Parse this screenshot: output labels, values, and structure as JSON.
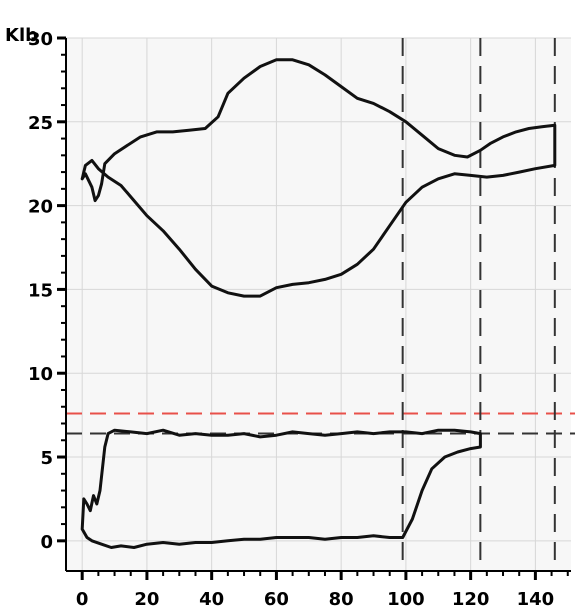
{
  "chart_data": {
    "type": "line",
    "title": "",
    "xlabel": "",
    "ylabel": "Klb",
    "xlim": [
      -5,
      151
    ],
    "ylim": [
      -1.8,
      30
    ],
    "x_ticks": [
      0,
      20,
      40,
      60,
      80,
      100,
      120,
      140
    ],
    "y_ticks": [
      0,
      5,
      10,
      15,
      20,
      25,
      30
    ],
    "grid": true,
    "legend": "none",
    "colors": {
      "plot_background": "#f7f7f7",
      "grid": "#d7d7d7",
      "curve": "#111111",
      "red_reference": "#e8504a",
      "dashed_reference": "#333333"
    },
    "reference_lines": {
      "horizontal": [
        {
          "y": 7.6,
          "color": "#e8504a",
          "style": "dashed"
        },
        {
          "y": 6.4,
          "color": "#333333",
          "style": "dashed"
        }
      ],
      "vertical": [
        {
          "x": 99,
          "color": "#333333",
          "style": "dashed"
        },
        {
          "x": 123,
          "color": "#333333",
          "style": "dashed"
        },
        {
          "x": 146,
          "color": "#333333",
          "style": "dashed"
        }
      ]
    },
    "series": [
      {
        "values": [
          [
            0,
            21.6
          ],
          [
            1,
            22.4
          ],
          [
            3,
            22.7
          ],
          [
            5,
            22.2
          ],
          [
            8,
            21.7
          ],
          [
            12,
            21.2
          ],
          [
            16,
            20.3
          ],
          [
            20,
            19.4
          ],
          [
            25,
            18.5
          ],
          [
            30,
            17.4
          ],
          [
            35,
            16.2
          ],
          [
            40,
            15.2
          ],
          [
            45,
            14.8
          ],
          [
            50,
            14.6
          ],
          [
            55,
            14.6
          ],
          [
            60,
            15.1
          ],
          [
            65,
            15.3
          ],
          [
            70,
            15.4
          ],
          [
            75,
            15.6
          ],
          [
            80,
            15.9
          ],
          [
            85,
            16.5
          ],
          [
            90,
            17.4
          ],
          [
            95,
            18.8
          ],
          [
            100,
            20.2
          ],
          [
            105,
            21.1
          ],
          [
            110,
            21.6
          ],
          [
            115,
            21.9
          ],
          [
            120,
            21.8
          ],
          [
            125,
            21.7
          ],
          [
            130,
            21.8
          ],
          [
            135,
            22.0
          ],
          [
            140,
            22.2
          ],
          [
            146,
            22.4
          ],
          [
            146,
            23.5
          ],
          [
            146,
            24.8
          ],
          [
            142,
            24.7
          ],
          [
            138,
            24.6
          ],
          [
            134,
            24.4
          ],
          [
            130,
            24.1
          ],
          [
            126,
            23.7
          ],
          [
            123,
            23.3
          ],
          [
            119,
            22.9
          ],
          [
            115,
            23.0
          ],
          [
            110,
            23.4
          ],
          [
            105,
            24.2
          ],
          [
            100,
            25.0
          ],
          [
            95,
            25.6
          ],
          [
            90,
            26.1
          ],
          [
            85,
            26.4
          ],
          [
            80,
            27.1
          ],
          [
            75,
            27.8
          ],
          [
            70,
            28.4
          ],
          [
            65,
            28.7
          ],
          [
            60,
            28.7
          ],
          [
            55,
            28.3
          ],
          [
            50,
            27.6
          ],
          [
            45,
            26.7
          ],
          [
            42,
            25.3
          ],
          [
            38,
            24.6
          ],
          [
            33,
            24.5
          ],
          [
            28,
            24.4
          ],
          [
            23,
            24.4
          ],
          [
            18,
            24.1
          ],
          [
            14,
            23.6
          ],
          [
            10,
            23.1
          ],
          [
            7,
            22.5
          ],
          [
            6,
            21.3
          ],
          [
            5,
            20.6
          ],
          [
            4,
            20.3
          ],
          [
            3,
            21.1
          ],
          [
            1,
            21.9
          ],
          [
            0,
            21.6
          ]
        ]
      },
      {
        "values": [
          [
            0,
            0.7
          ],
          [
            0.5,
            2.5
          ],
          [
            1.5,
            2.2
          ],
          [
            2.5,
            1.8
          ],
          [
            3.5,
            2.7
          ],
          [
            4.5,
            2.2
          ],
          [
            5.5,
            3.0
          ],
          [
            7,
            5.6
          ],
          [
            8,
            6.4
          ],
          [
            10,
            6.6
          ],
          [
            15,
            6.5
          ],
          [
            20,
            6.4
          ],
          [
            25,
            6.6
          ],
          [
            30,
            6.3
          ],
          [
            35,
            6.4
          ],
          [
            40,
            6.3
          ],
          [
            45,
            6.3
          ],
          [
            50,
            6.4
          ],
          [
            55,
            6.2
          ],
          [
            60,
            6.3
          ],
          [
            65,
            6.5
          ],
          [
            70,
            6.4
          ],
          [
            75,
            6.3
          ],
          [
            80,
            6.4
          ],
          [
            85,
            6.5
          ],
          [
            90,
            6.4
          ],
          [
            95,
            6.5
          ],
          [
            100,
            6.5
          ],
          [
            105,
            6.4
          ],
          [
            110,
            6.6
          ],
          [
            115,
            6.6
          ],
          [
            120,
            6.5
          ],
          [
            123,
            6.4
          ],
          [
            123,
            5.6
          ],
          [
            120,
            5.5
          ],
          [
            116,
            5.3
          ],
          [
            112,
            5.0
          ],
          [
            108,
            4.3
          ],
          [
            105,
            3.0
          ],
          [
            102,
            1.3
          ],
          [
            99,
            0.2
          ],
          [
            95,
            0.2
          ],
          [
            90,
            0.3
          ],
          [
            85,
            0.2
          ],
          [
            80,
            0.2
          ],
          [
            75,
            0.1
          ],
          [
            70,
            0.2
          ],
          [
            65,
            0.2
          ],
          [
            60,
            0.2
          ],
          [
            55,
            0.1
          ],
          [
            50,
            0.1
          ],
          [
            45,
            0.0
          ],
          [
            40,
            -0.1
          ],
          [
            35,
            -0.1
          ],
          [
            30,
            -0.2
          ],
          [
            25,
            -0.1
          ],
          [
            20,
            -0.2
          ],
          [
            16,
            -0.4
          ],
          [
            12,
            -0.3
          ],
          [
            9,
            -0.4
          ],
          [
            6,
            -0.2
          ],
          [
            3,
            0.0
          ],
          [
            1.5,
            0.2
          ],
          [
            0,
            0.7
          ]
        ]
      }
    ]
  }
}
